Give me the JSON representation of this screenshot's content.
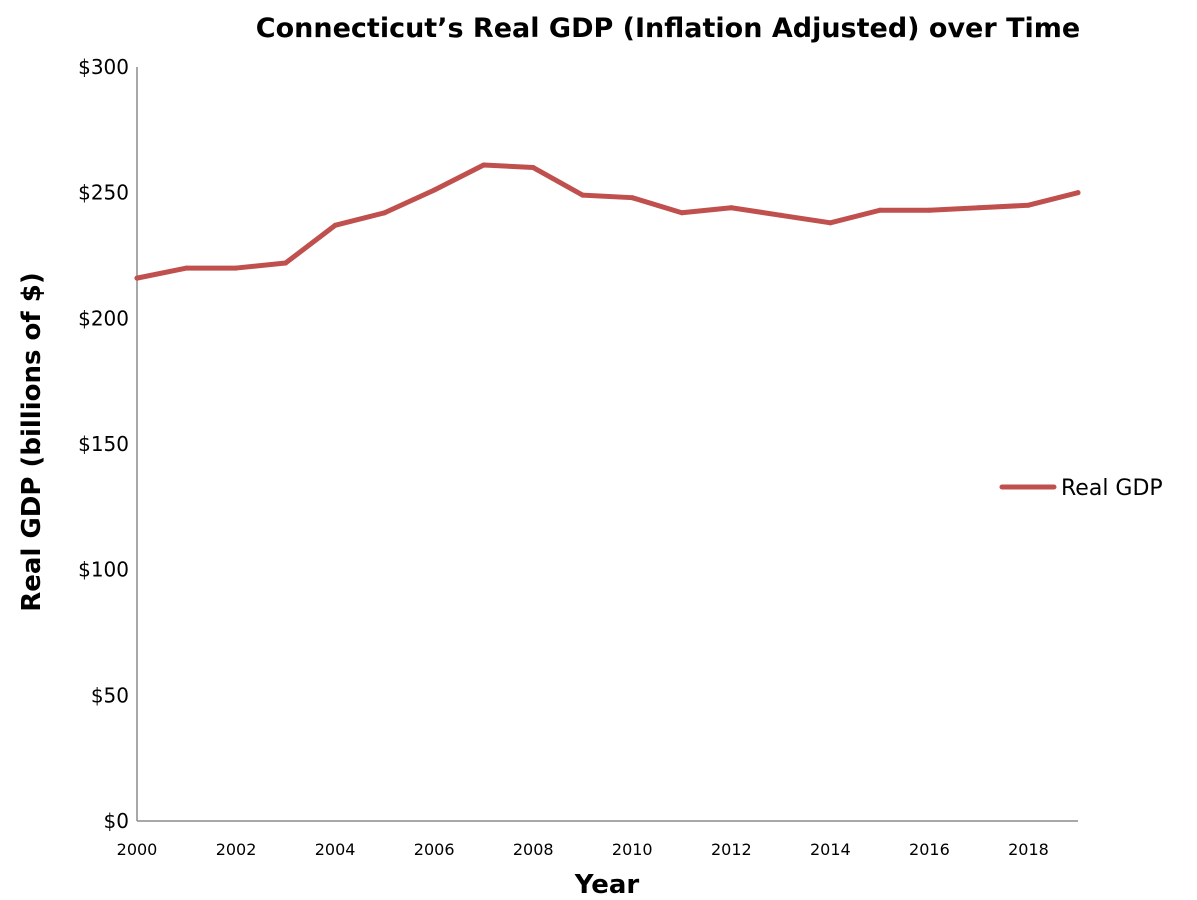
{
  "chart_data": {
    "type": "line",
    "title": "Connecticut’s Real GDP (Inflation Adjusted) over Time",
    "xlabel": "Year",
    "ylabel": "Real GDP (billions of $)",
    "x": [
      2000,
      2001,
      2002,
      2003,
      2004,
      2005,
      2006,
      2007,
      2008,
      2009,
      2010,
      2011,
      2012,
      2013,
      2014,
      2015,
      2016,
      2017,
      2018,
      2019
    ],
    "x_tick_labels": [
      "2000",
      "2002",
      "2004",
      "2006",
      "2008",
      "2010",
      "2012",
      "2014",
      "2016",
      "2018"
    ],
    "x_tick_values": [
      2000,
      2002,
      2004,
      2006,
      2008,
      2010,
      2012,
      2014,
      2016,
      2018
    ],
    "y_tick_labels": [
      "$0",
      "$50",
      "$100",
      "$150",
      "$200",
      "$250",
      "$300"
    ],
    "y_tick_values": [
      0,
      50,
      100,
      150,
      200,
      250,
      300
    ],
    "xlim": [
      2000,
      2019
    ],
    "ylim": [
      0,
      300
    ],
    "grid": false,
    "legend_position": "right",
    "series": [
      {
        "name": "Real GDP",
        "color": "#c0504d",
        "values": [
          216,
          220,
          220,
          222,
          237,
          242,
          251,
          261,
          260,
          249,
          248,
          242,
          244,
          241,
          238,
          243,
          243,
          244,
          245,
          250
        ]
      }
    ]
  }
}
